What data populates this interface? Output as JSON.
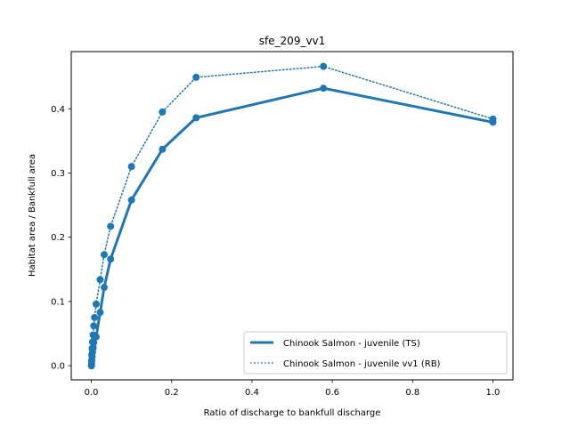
{
  "chart_data": {
    "type": "line",
    "title": "sfe_209_vv1",
    "xlabel": "Ratio of discharge to bankfull discharge",
    "ylabel": "Habitat area / Bankfull area",
    "xlim": [
      -0.05,
      1.05
    ],
    "ylim": [
      -0.022,
      0.489
    ],
    "xticks": [
      0.0,
      0.2,
      0.4,
      0.6,
      0.8,
      1.0
    ],
    "xtick_labels": [
      "0.0",
      "0.2",
      "0.4",
      "0.6",
      "0.8",
      "1.0"
    ],
    "yticks": [
      0.0,
      0.1,
      0.2,
      0.3,
      0.4
    ],
    "ytick_labels": [
      "0.0",
      "0.1",
      "0.2",
      "0.3",
      "0.4"
    ],
    "grid": false,
    "legend_position": "lower-right",
    "color": "#1f77b4",
    "series": [
      {
        "name": "Chinook Salmon - juvenile (TS)",
        "line_style": "solid",
        "x": [
          0.0003,
          0.0006,
          0.0012,
          0.002,
          0.003,
          0.0045,
          0.006,
          0.008,
          0.012,
          0.022,
          0.032,
          0.048,
          0.1,
          0.177,
          0.261,
          0.578,
          1.0
        ],
        "y": [
          0.0,
          0.003,
          0.008,
          0.014,
          0.021,
          0.028,
          0.036,
          0.044,
          0.045,
          0.083,
          0.122,
          0.166,
          0.258,
          0.337,
          0.386,
          0.432,
          0.379
        ]
      },
      {
        "name": "Chinook Salmon - juvenile vv1 (RB)",
        "line_style": "dotted",
        "x": [
          0.0003,
          0.0006,
          0.0012,
          0.002,
          0.003,
          0.0045,
          0.006,
          0.008,
          0.012,
          0.022,
          0.032,
          0.048,
          0.1,
          0.177,
          0.261,
          0.578,
          1.0
        ],
        "y": [
          0.0,
          0.008,
          0.017,
          0.027,
          0.037,
          0.048,
          0.062,
          0.075,
          0.096,
          0.134,
          0.173,
          0.217,
          0.31,
          0.395,
          0.449,
          0.466,
          0.384
        ]
      }
    ]
  }
}
